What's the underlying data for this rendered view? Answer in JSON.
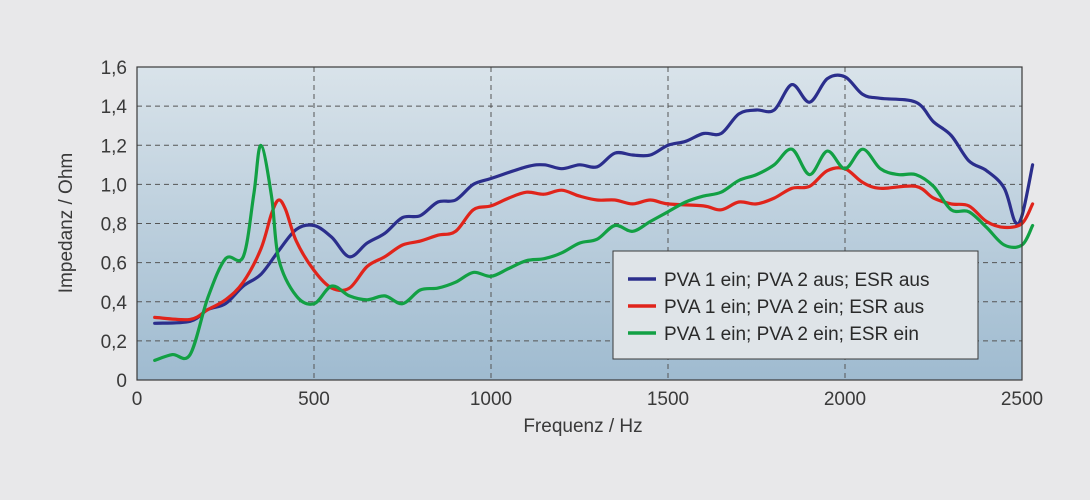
{
  "chart_data": {
    "type": "line",
    "title": "",
    "xlabel": "Frequenz / Hz",
    "ylabel": "Impedanz / Ohm",
    "xlim": [
      0,
      2500
    ],
    "ylim": [
      0,
      1.6
    ],
    "x_ticks": [
      0,
      500,
      1000,
      1500,
      2000,
      2500
    ],
    "x_tick_labels": [
      "0",
      "500",
      "1000",
      "1500",
      "2000",
      "2500"
    ],
    "y_ticks": [
      0,
      0.2,
      0.4,
      0.6,
      0.8,
      1.0,
      1.2,
      1.4,
      1.6
    ],
    "y_tick_labels": [
      "0",
      "0,2",
      "0,4",
      "0,6",
      "0,8",
      "1,0",
      "1,2",
      "1,4",
      "1,6"
    ],
    "grid": true,
    "legend_position": "lower-right",
    "series": [
      {
        "name": "PVA 1 ein; PVA 2 aus; ESR aus",
        "color": "#2b2e8c",
        "points": [
          [
            50,
            0.29
          ],
          [
            150,
            0.3
          ],
          [
            200,
            0.36
          ],
          [
            250,
            0.39
          ],
          [
            300,
            0.48
          ],
          [
            350,
            0.54
          ],
          [
            400,
            0.66
          ],
          [
            450,
            0.77
          ],
          [
            500,
            0.79
          ],
          [
            550,
            0.73
          ],
          [
            600,
            0.63
          ],
          [
            650,
            0.7
          ],
          [
            700,
            0.75
          ],
          [
            750,
            0.83
          ],
          [
            800,
            0.84
          ],
          [
            850,
            0.91
          ],
          [
            900,
            0.92
          ],
          [
            950,
            1.0
          ],
          [
            1000,
            1.03
          ],
          [
            1100,
            1.09
          ],
          [
            1150,
            1.1
          ],
          [
            1200,
            1.08
          ],
          [
            1250,
            1.1
          ],
          [
            1300,
            1.09
          ],
          [
            1350,
            1.16
          ],
          [
            1400,
            1.15
          ],
          [
            1450,
            1.15
          ],
          [
            1500,
            1.2
          ],
          [
            1550,
            1.22
          ],
          [
            1600,
            1.26
          ],
          [
            1650,
            1.26
          ],
          [
            1700,
            1.36
          ],
          [
            1750,
            1.38
          ],
          [
            1800,
            1.38
          ],
          [
            1850,
            1.51
          ],
          [
            1900,
            1.42
          ],
          [
            1950,
            1.54
          ],
          [
            2000,
            1.55
          ],
          [
            2050,
            1.46
          ],
          [
            2100,
            1.44
          ],
          [
            2200,
            1.42
          ],
          [
            2250,
            1.32
          ],
          [
            2300,
            1.25
          ],
          [
            2350,
            1.12
          ],
          [
            2400,
            1.07
          ],
          [
            2450,
            0.98
          ],
          [
            2480,
            0.81
          ],
          [
            2500,
            0.84
          ],
          [
            2530,
            1.1
          ]
        ]
      },
      {
        "name": "PVA 1 ein; PVA 2 ein; ESR aus",
        "color": "#e0241b",
        "points": [
          [
            50,
            0.32
          ],
          [
            150,
            0.31
          ],
          [
            200,
            0.36
          ],
          [
            250,
            0.41
          ],
          [
            300,
            0.5
          ],
          [
            350,
            0.67
          ],
          [
            380,
            0.85
          ],
          [
            400,
            0.92
          ],
          [
            420,
            0.87
          ],
          [
            450,
            0.71
          ],
          [
            500,
            0.56
          ],
          [
            550,
            0.47
          ],
          [
            600,
            0.47
          ],
          [
            650,
            0.58
          ],
          [
            700,
            0.63
          ],
          [
            750,
            0.69
          ],
          [
            800,
            0.71
          ],
          [
            850,
            0.74
          ],
          [
            900,
            0.76
          ],
          [
            950,
            0.87
          ],
          [
            1000,
            0.89
          ],
          [
            1050,
            0.93
          ],
          [
            1100,
            0.96
          ],
          [
            1150,
            0.95
          ],
          [
            1200,
            0.97
          ],
          [
            1250,
            0.94
          ],
          [
            1300,
            0.92
          ],
          [
            1350,
            0.92
          ],
          [
            1400,
            0.9
          ],
          [
            1450,
            0.92
          ],
          [
            1500,
            0.9
          ],
          [
            1600,
            0.89
          ],
          [
            1650,
            0.87
          ],
          [
            1700,
            0.91
          ],
          [
            1750,
            0.9
          ],
          [
            1800,
            0.93
          ],
          [
            1850,
            0.98
          ],
          [
            1900,
            0.99
          ],
          [
            1950,
            1.07
          ],
          [
            2000,
            1.08
          ],
          [
            2050,
            1.01
          ],
          [
            2100,
            0.98
          ],
          [
            2200,
            0.99
          ],
          [
            2250,
            0.93
          ],
          [
            2300,
            0.9
          ],
          [
            2350,
            0.89
          ],
          [
            2400,
            0.81
          ],
          [
            2450,
            0.78
          ],
          [
            2500,
            0.8
          ],
          [
            2530,
            0.9
          ]
        ]
      },
      {
        "name": "PVA 1 ein; PVA 2 ein; ESR ein",
        "color": "#12a044",
        "points": [
          [
            50,
            0.1
          ],
          [
            100,
            0.13
          ],
          [
            150,
            0.13
          ],
          [
            200,
            0.42
          ],
          [
            250,
            0.62
          ],
          [
            300,
            0.63
          ],
          [
            330,
            0.95
          ],
          [
            350,
            1.2
          ],
          [
            380,
            0.94
          ],
          [
            400,
            0.62
          ],
          [
            450,
            0.43
          ],
          [
            500,
            0.39
          ],
          [
            550,
            0.48
          ],
          [
            600,
            0.43
          ],
          [
            650,
            0.41
          ],
          [
            700,
            0.43
          ],
          [
            750,
            0.39
          ],
          [
            800,
            0.46
          ],
          [
            850,
            0.47
          ],
          [
            900,
            0.5
          ],
          [
            950,
            0.55
          ],
          [
            1000,
            0.53
          ],
          [
            1050,
            0.57
          ],
          [
            1100,
            0.61
          ],
          [
            1150,
            0.62
          ],
          [
            1200,
            0.65
          ],
          [
            1250,
            0.7
          ],
          [
            1300,
            0.72
          ],
          [
            1350,
            0.79
          ],
          [
            1400,
            0.76
          ],
          [
            1450,
            0.81
          ],
          [
            1500,
            0.86
          ],
          [
            1550,
            0.91
          ],
          [
            1600,
            0.94
          ],
          [
            1650,
            0.96
          ],
          [
            1700,
            1.02
          ],
          [
            1750,
            1.05
          ],
          [
            1800,
            1.1
          ],
          [
            1850,
            1.18
          ],
          [
            1900,
            1.05
          ],
          [
            1950,
            1.17
          ],
          [
            2000,
            1.08
          ],
          [
            2050,
            1.18
          ],
          [
            2100,
            1.08
          ],
          [
            2150,
            1.05
          ],
          [
            2200,
            1.05
          ],
          [
            2250,
            0.99
          ],
          [
            2300,
            0.87
          ],
          [
            2350,
            0.86
          ],
          [
            2400,
            0.78
          ],
          [
            2450,
            0.69
          ],
          [
            2500,
            0.69
          ],
          [
            2530,
            0.79
          ]
        ]
      }
    ]
  }
}
